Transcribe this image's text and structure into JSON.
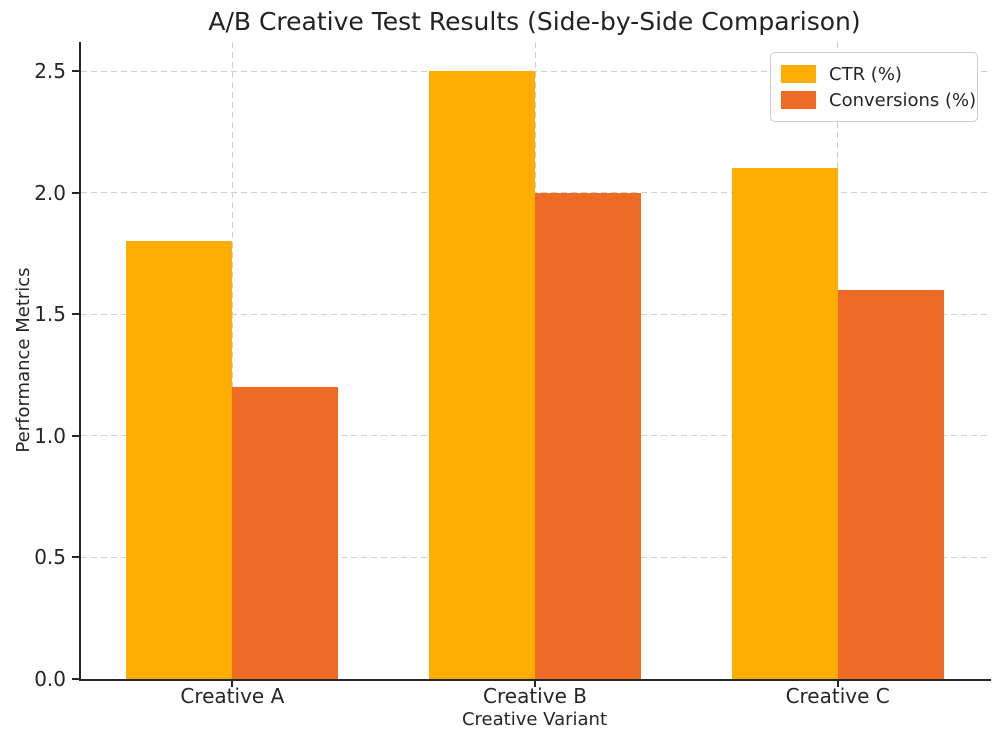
{
  "chart_data": {
    "type": "bar",
    "title": "A/B Creative Test Results (Side-by-Side Comparison)",
    "xlabel": "Creative Variant",
    "ylabel": "Performance Metrics",
    "categories": [
      "Creative A",
      "Creative B",
      "Creative C"
    ],
    "series": [
      {
        "name": "CTR (%)",
        "color": "#FFAD00",
        "values": [
          1.8,
          2.5,
          2.1
        ]
      },
      {
        "name": "Conversions (%)",
        "color": "#EE6B25",
        "values": [
          1.2,
          2.0,
          1.6
        ]
      }
    ],
    "ylim": [
      0,
      2.62
    ],
    "yticks": [
      0,
      0.5,
      1.0,
      1.5,
      2.0,
      2.5
    ],
    "ytick_labels": [
      "0.0",
      "0.5",
      "1.0",
      "1.5",
      "2.0",
      "2.5"
    ],
    "grid": true,
    "grid_style": "dashed",
    "legend_position": "upper right",
    "bar_width_fraction": 0.35
  },
  "style": {
    "background": "#ffffff",
    "grid_color": "#cfcfcf",
    "spine_color": "#262626",
    "text_color": "#222222",
    "legend_border_color": "#cccccc"
  }
}
